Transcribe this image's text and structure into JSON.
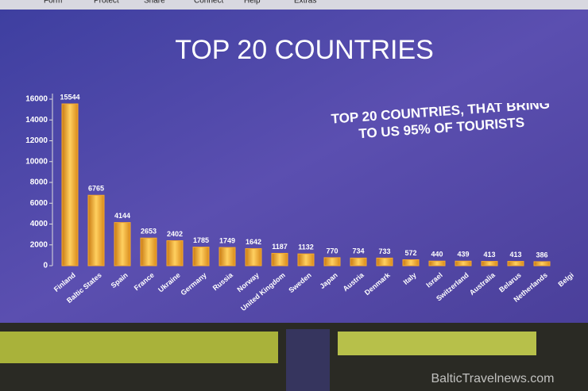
{
  "menu": [
    "Form",
    "Protect",
    "Share",
    "Connect",
    "Help",
    "Extras"
  ],
  "watermark": "BalticTravelnews.com",
  "chart_data": {
    "type": "bar",
    "title": "TOP 20 COUNTRIES",
    "annotation": "TOP 20 COUNTRIES, THAT BRING TO US 95% OF TOURISTS",
    "categories": [
      "Finland",
      "Baltic States",
      "Spain",
      "France",
      "Ukraine",
      "Germany",
      "Russia",
      "Norway",
      "United Kingdom",
      "Sweden",
      "Japan",
      "Austria",
      "Denmark",
      "Italy",
      "Israel",
      "Switzerland",
      "Australia",
      "Belarus",
      "Netherlands",
      "Belgi"
    ],
    "values": [
      15544,
      6765,
      4144,
      2653,
      2402,
      1785,
      1749,
      1642,
      1187,
      1132,
      770,
      734,
      733,
      572,
      440,
      439,
      413,
      413,
      386,
      null
    ],
    "color": "#f6a92e",
    "ylim": [
      0,
      16000
    ],
    "yticks": [
      0,
      2000,
      4000,
      6000,
      8000,
      10000,
      12000,
      14000,
      16000
    ]
  }
}
